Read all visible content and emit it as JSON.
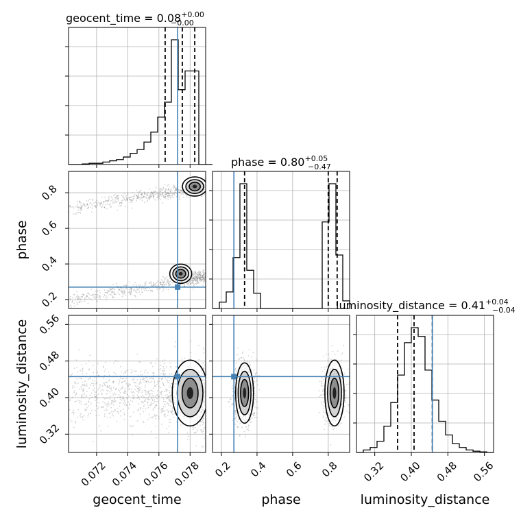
{
  "params": [
    "geocent_time",
    "phase",
    "luminosity_distance"
  ],
  "titles": [
    {
      "name": "geocent_time",
      "eq": " = 0.08",
      "sup": "+0.00",
      "sub": "−0.00"
    },
    {
      "name": "phase",
      "eq": " = 0.80",
      "sup": "+0.05",
      "sub": "−0.47"
    },
    {
      "name": "luminosity_distance",
      "eq": " = 0.41",
      "sup": "+0.04",
      "sub": "−0.04"
    }
  ],
  "axis_labels": {
    "x": [
      "geocent_time",
      "phase",
      "luminosity_distance"
    ],
    "y": [
      "phase",
      "luminosity_distance"
    ]
  },
  "colors": {
    "truth": "#4682b4",
    "hist": "#000000",
    "grid": "#b0b0b0",
    "scatter": "#7f7f7f"
  },
  "chart_data": {
    "type": "corner",
    "grid": true,
    "ranges": {
      "geocent_time": [
        0.0702,
        0.079
      ],
      "phase": [
        0.15,
        0.92
      ],
      "luminosity_distance": [
        0.28,
        0.58
      ]
    },
    "ticks": {
      "geocent_time": [
        "0.072",
        "0.074",
        "0.076",
        "0.078"
      ],
      "phase": [
        "0.2",
        "0.4",
        "0.6",
        "0.8"
      ],
      "luminosity_distance": [
        "0.32",
        "0.40",
        "0.48",
        "0.56"
      ]
    },
    "truths": {
      "geocent_time": 0.0772,
      "phase": 0.27,
      "luminosity_distance": 0.446
    },
    "quantiles": {
      "geocent_time": [
        0.0764,
        0.0775,
        0.0783
      ],
      "phase": [
        0.33,
        0.8,
        0.85
      ],
      "luminosity_distance": [
        0.37,
        0.406,
        0.446
      ]
    },
    "histograms": {
      "geocent_time": {
        "start": 0.0702,
        "width": 0.00044,
        "counts": [
          0,
          0,
          0.005,
          0.01,
          0.01,
          0.02,
          0.03,
          0.04,
          0.06,
          0.09,
          0.12,
          0.18,
          0.26,
          0.38,
          0.5,
          1.0,
          0.6,
          0.75,
          0.75,
          0,
          0
        ]
      },
      "phase": {
        "start": 0.15,
        "width": 0.0385,
        "counts": [
          0.0,
          0.05,
          0.13,
          0.4,
          0.98,
          0.3,
          0.12,
          0.0,
          0.0,
          0.0,
          0.0,
          0.0,
          0.0,
          0.0,
          0.0,
          0.0,
          0.68,
          0.98,
          0.42,
          0.06
        ]
      },
      "luminosity_distance": {
        "start": 0.28,
        "width": 0.015,
        "counts": [
          0.0,
          0.02,
          0.04,
          0.09,
          0.21,
          0.4,
          0.62,
          0.88,
          1.0,
          0.93,
          0.66,
          0.42,
          0.25,
          0.14,
          0.07,
          0.04,
          0.02,
          0.01,
          0.005,
          0.0
        ]
      }
    }
  }
}
